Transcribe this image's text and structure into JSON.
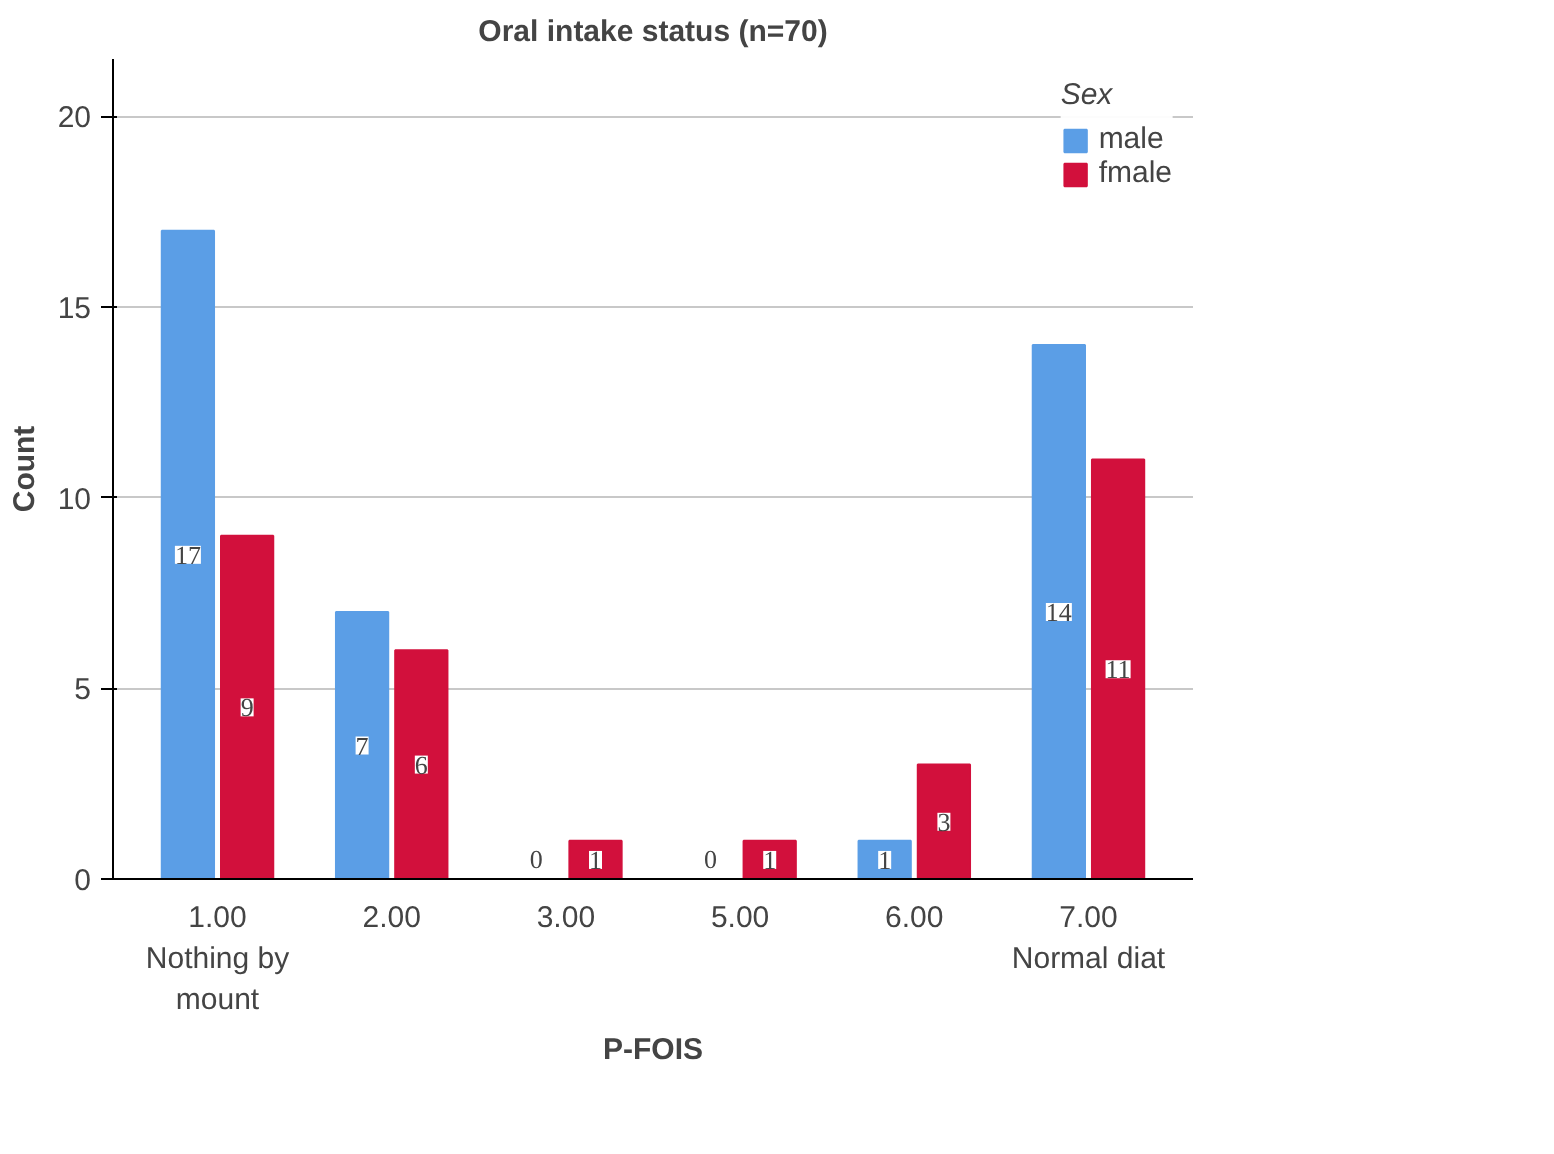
{
  "chart_data": {
    "type": "bar",
    "title": "Oral intake status (n=70)",
    "xlabel": "P-FOIS",
    "ylabel": "Count",
    "legend_title": "Sex",
    "categories": [
      "1.00\nNothing by\nmount",
      "2.00",
      "3.00",
      "5.00",
      "6.00",
      "7.00\nNormal diat"
    ],
    "series": [
      {
        "name": "male",
        "color": "#5b9ee6",
        "values": [
          17,
          7,
          0,
          0,
          1,
          14
        ]
      },
      {
        "name": "fmale",
        "color": "#d2103c",
        "values": [
          9,
          6,
          1,
          1,
          3,
          11
        ]
      }
    ],
    "ylim": [
      0,
      21.5
    ],
    "yticks": [
      0,
      5,
      10,
      15,
      20
    ],
    "grid": "y",
    "legend": "top right",
    "data_labels": true
  }
}
